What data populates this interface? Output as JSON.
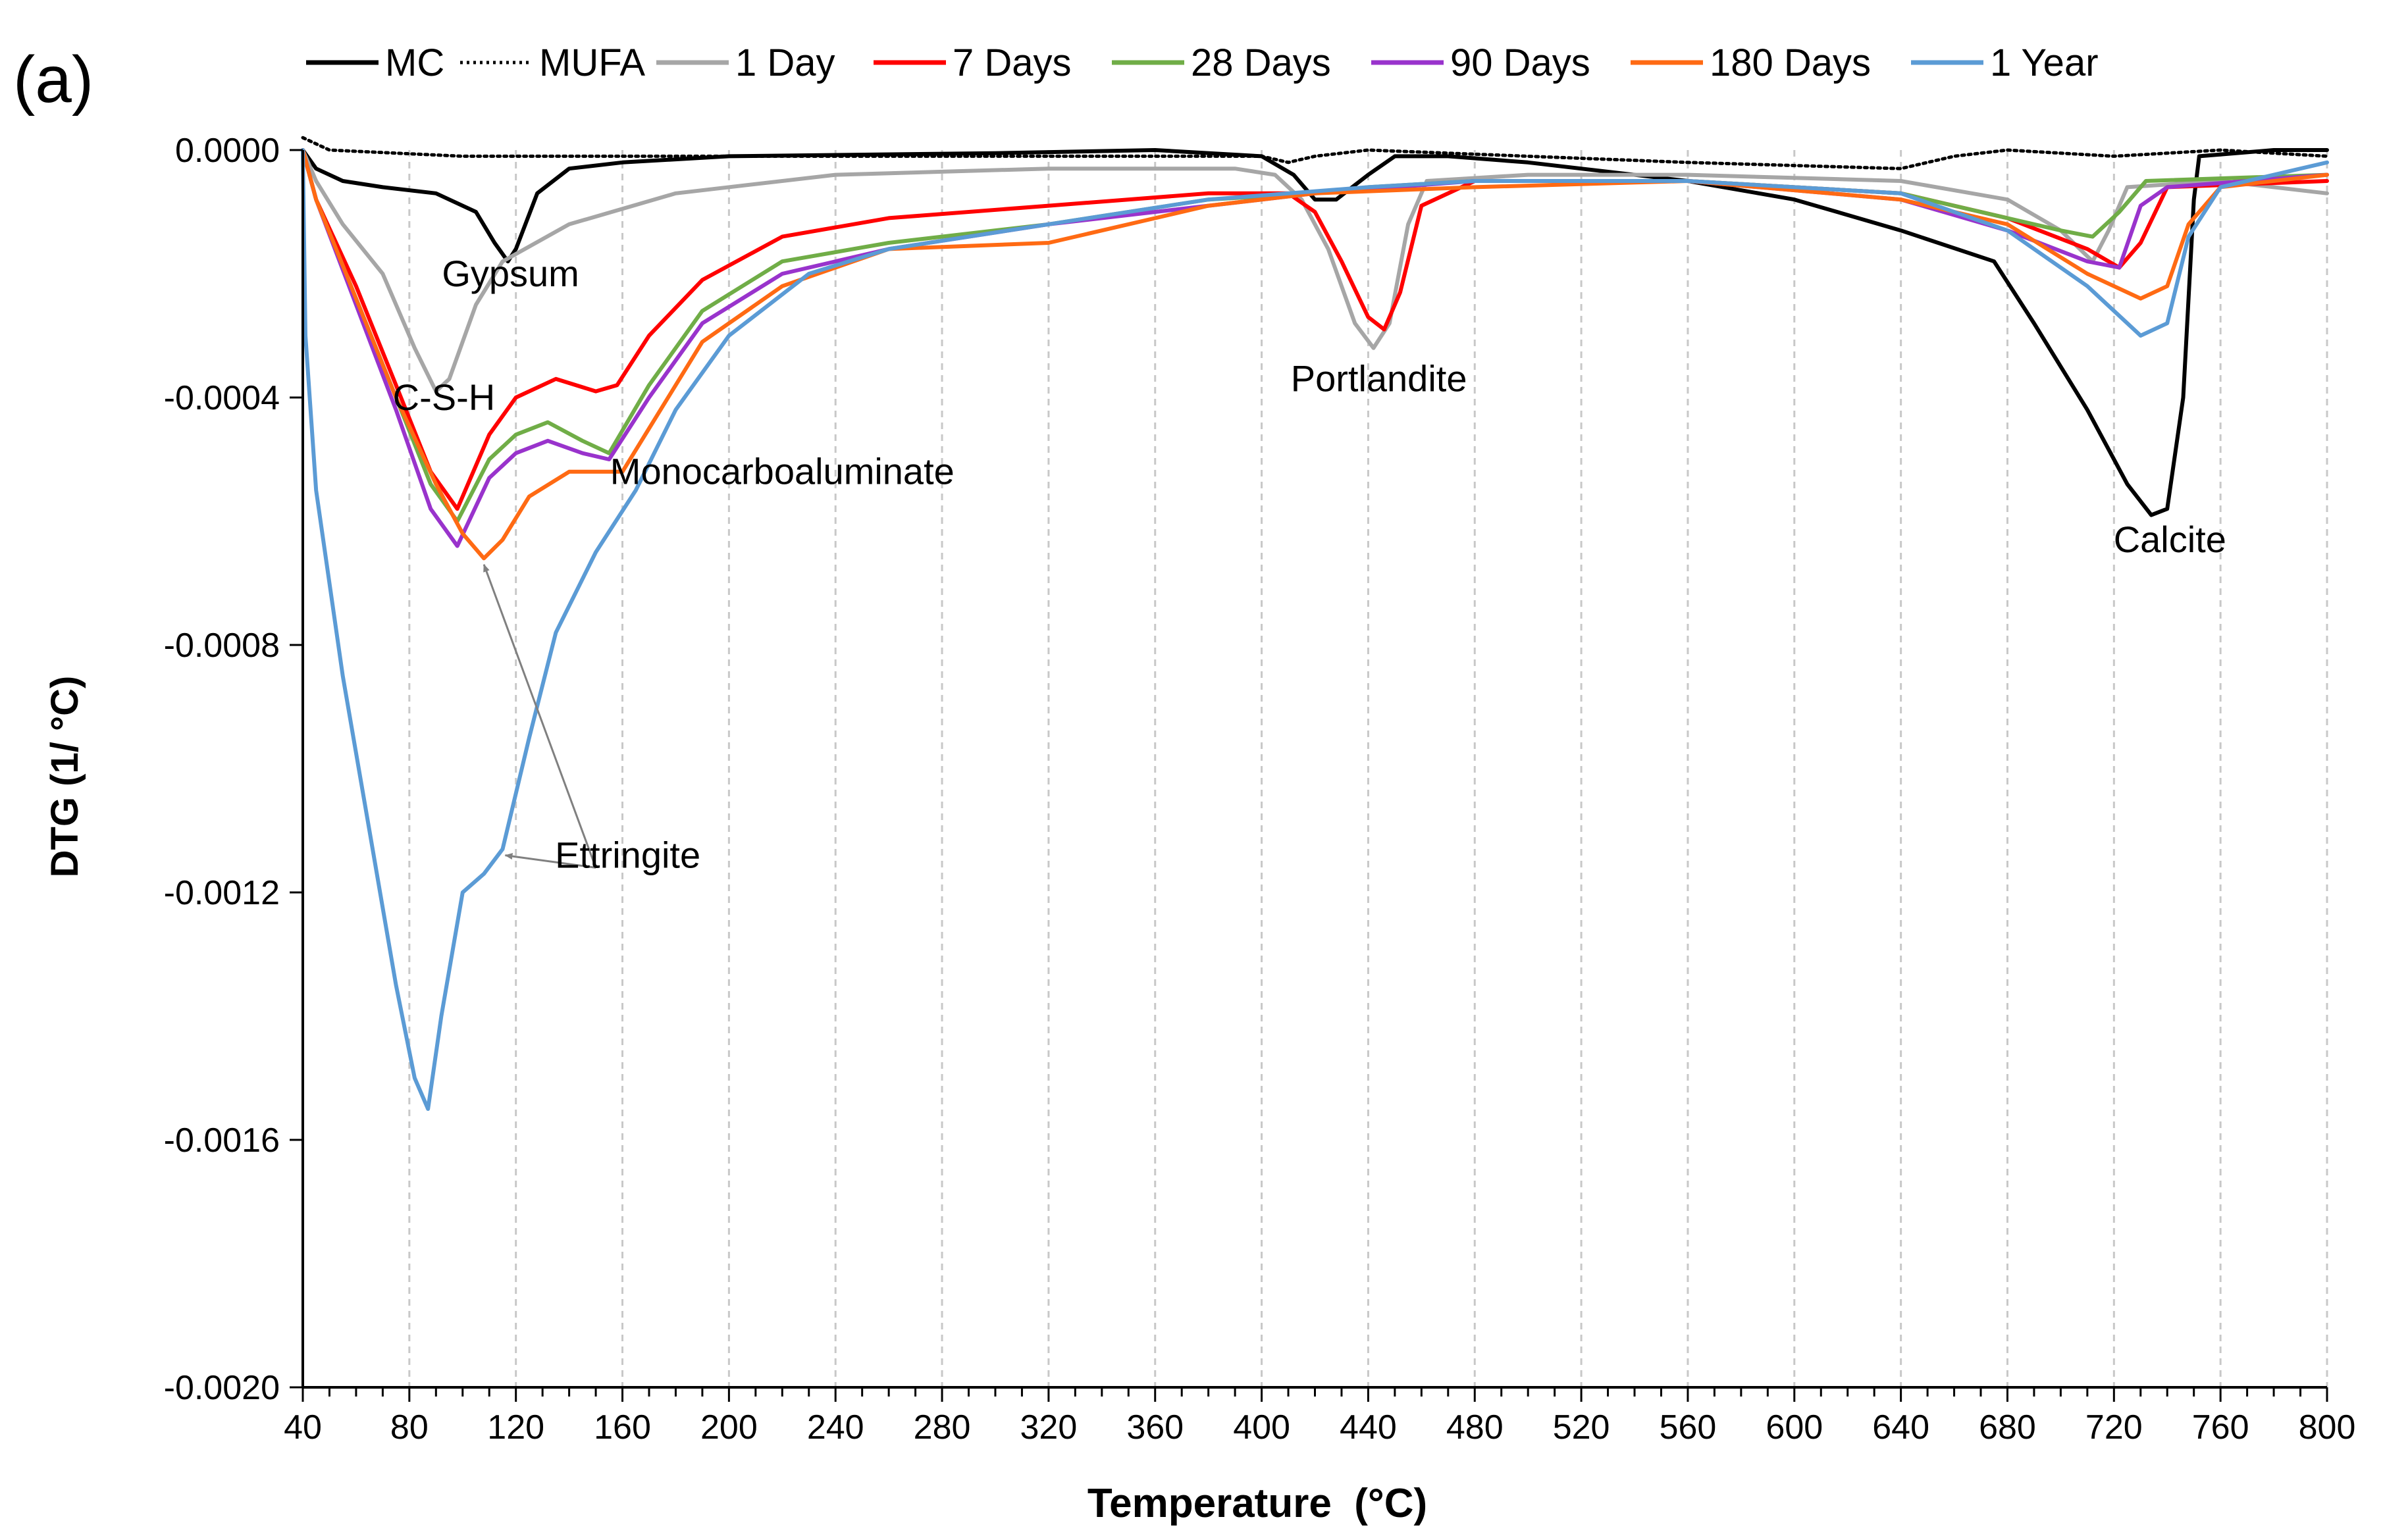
{
  "chart_data": {
    "type": "line",
    "panel_label": "(a)",
    "xlabel": "Temperature  (°C)",
    "ylabel": "DTG (1/ °C)",
    "xlim": [
      40,
      800
    ],
    "ylim": [
      -0.002,
      0.0
    ],
    "x_ticks": [
      40,
      80,
      120,
      160,
      200,
      240,
      280,
      320,
      360,
      400,
      440,
      480,
      520,
      560,
      600,
      640,
      680,
      720,
      760,
      800
    ],
    "x_tick_labels": [
      "40",
      "80",
      "120",
      "160",
      "200",
      "240",
      "280",
      "320",
      "360",
      "400",
      "440",
      "480",
      "520",
      "560",
      "600",
      "640",
      "680",
      "720",
      "760",
      "800"
    ],
    "y_ticks": [
      0.0,
      -0.0004,
      -0.0008,
      -0.0012,
      -0.0016,
      -0.002
    ],
    "y_tick_labels": [
      "0.0000",
      "-0.0004",
      "-0.0008",
      "-0.0012",
      "-0.0016",
      "-0.0020"
    ],
    "grid": "vertical dashed",
    "legend_position": "top",
    "series": [
      {
        "name": "MC",
        "color": "#000000",
        "dash": "solid",
        "points": [
          [
            40,
            0
          ],
          [
            45,
            -3e-05
          ],
          [
            55,
            -5e-05
          ],
          [
            70,
            -6e-05
          ],
          [
            90,
            -7e-05
          ],
          [
            105,
            -0.0001
          ],
          [
            112,
            -0.00015
          ],
          [
            117,
            -0.00018
          ],
          [
            120,
            -0.00016
          ],
          [
            128,
            -7e-05
          ],
          [
            140,
            -3e-05
          ],
          [
            160,
            -2e-05
          ],
          [
            200,
            -1e-05
          ],
          [
            300,
            -5e-06
          ],
          [
            360,
            0
          ],
          [
            400,
            -1e-05
          ],
          [
            412,
            -4e-05
          ],
          [
            420,
            -8e-05
          ],
          [
            428,
            -8e-05
          ],
          [
            440,
            -4e-05
          ],
          [
            450,
            -1e-05
          ],
          [
            470,
            -1e-05
          ],
          [
            500,
            -2e-05
          ],
          [
            560,
            -5e-05
          ],
          [
            600,
            -8e-05
          ],
          [
            640,
            -0.00013
          ],
          [
            675,
            -0.00018
          ],
          [
            690,
            -0.00028
          ],
          [
            710,
            -0.00042
          ],
          [
            725,
            -0.00054
          ],
          [
            734,
            -0.00059
          ],
          [
            740,
            -0.00058
          ],
          [
            746,
            -0.0004
          ],
          [
            750,
            -8e-05
          ],
          [
            752,
            -1e-05
          ],
          [
            780,
            0
          ],
          [
            800,
            0
          ]
        ]
      },
      {
        "name": "MUFA",
        "color": "#000000",
        "dash": "dotted",
        "points": [
          [
            40,
            2e-05
          ],
          [
            50,
            0
          ],
          [
            100,
            -1e-05
          ],
          [
            200,
            -1e-05
          ],
          [
            300,
            -1e-05
          ],
          [
            400,
            -1e-05
          ],
          [
            410,
            -2e-05
          ],
          [
            420,
            -1e-05
          ],
          [
            440,
            0
          ],
          [
            500,
            -1e-05
          ],
          [
            560,
            -2e-05
          ],
          [
            640,
            -3e-05
          ],
          [
            660,
            -1e-05
          ],
          [
            680,
            0
          ],
          [
            720,
            -1e-05
          ],
          [
            760,
            0
          ],
          [
            800,
            -1e-05
          ]
        ]
      },
      {
        "name": "1 Day",
        "color": "#a6a6a6",
        "dash": "solid",
        "points": [
          [
            40,
            0
          ],
          [
            45,
            -5e-05
          ],
          [
            55,
            -0.00012
          ],
          [
            70,
            -0.0002
          ],
          [
            82,
            -0.00032
          ],
          [
            90,
            -0.00039
          ],
          [
            95,
            -0.00037
          ],
          [
            105,
            -0.00025
          ],
          [
            115,
            -0.00018
          ],
          [
            140,
            -0.00012
          ],
          [
            180,
            -7e-05
          ],
          [
            240,
            -4e-05
          ],
          [
            320,
            -3e-05
          ],
          [
            390,
            -3e-05
          ],
          [
            405,
            -4e-05
          ],
          [
            415,
            -8e-05
          ],
          [
            425,
            -0.00016
          ],
          [
            435,
            -0.00028
          ],
          [
            442,
            -0.00032
          ],
          [
            448,
            -0.00028
          ],
          [
            455,
            -0.00012
          ],
          [
            462,
            -5e-05
          ],
          [
            500,
            -4e-05
          ],
          [
            560,
            -4e-05
          ],
          [
            640,
            -5e-05
          ],
          [
            680,
            -8e-05
          ],
          [
            700,
            -0.00013
          ],
          [
            712,
            -0.00018
          ],
          [
            718,
            -0.00013
          ],
          [
            725,
            -6e-05
          ],
          [
            760,
            -5e-05
          ],
          [
            800,
            -7e-05
          ]
        ]
      },
      {
        "name": "7 Days",
        "color": "#ff0000",
        "dash": "solid",
        "points": [
          [
            40,
            0
          ],
          [
            45,
            -8e-05
          ],
          [
            60,
            -0.00022
          ],
          [
            75,
            -0.00038
          ],
          [
            88,
            -0.00052
          ],
          [
            98,
            -0.00058
          ],
          [
            110,
            -0.00046
          ],
          [
            120,
            -0.0004
          ],
          [
            135,
            -0.00037
          ],
          [
            150,
            -0.00039
          ],
          [
            158,
            -0.00038
          ],
          [
            170,
            -0.0003
          ],
          [
            190,
            -0.00021
          ],
          [
            220,
            -0.00014
          ],
          [
            260,
            -0.00011
          ],
          [
            320,
            -9e-05
          ],
          [
            380,
            -7e-05
          ],
          [
            410,
            -7e-05
          ],
          [
            420,
            -0.0001
          ],
          [
            430,
            -0.00018
          ],
          [
            440,
            -0.00027
          ],
          [
            446,
            -0.00029
          ],
          [
            452,
            -0.00023
          ],
          [
            460,
            -9e-05
          ],
          [
            480,
            -5e-05
          ],
          [
            560,
            -5e-05
          ],
          [
            640,
            -7e-05
          ],
          [
            680,
            -0.00011
          ],
          [
            710,
            -0.00016
          ],
          [
            722,
            -0.00019
          ],
          [
            730,
            -0.00015
          ],
          [
            740,
            -6e-05
          ],
          [
            800,
            -5e-05
          ]
        ]
      },
      {
        "name": "28 Days",
        "color": "#70ad47",
        "dash": "solid",
        "points": [
          [
            40,
            0
          ],
          [
            45,
            -8e-05
          ],
          [
            60,
            -0.00024
          ],
          [
            75,
            -0.0004
          ],
          [
            88,
            -0.00054
          ],
          [
            98,
            -0.0006
          ],
          [
            110,
            -0.0005
          ],
          [
            120,
            -0.00046
          ],
          [
            132,
            -0.00044
          ],
          [
            145,
            -0.00047
          ],
          [
            155,
            -0.00049
          ],
          [
            170,
            -0.00038
          ],
          [
            190,
            -0.00026
          ],
          [
            220,
            -0.00018
          ],
          [
            260,
            -0.00015
          ],
          [
            320,
            -0.00012
          ],
          [
            380,
            -8e-05
          ],
          [
            420,
            -7e-05
          ],
          [
            440,
            -6e-05
          ],
          [
            480,
            -5e-05
          ],
          [
            560,
            -5e-05
          ],
          [
            640,
            -7e-05
          ],
          [
            680,
            -0.00011
          ],
          [
            700,
            -0.00013
          ],
          [
            712,
            -0.00014
          ],
          [
            722,
            -0.0001
          ],
          [
            732,
            -5e-05
          ],
          [
            800,
            -4e-05
          ]
        ]
      },
      {
        "name": "90 Days",
        "color": "#9933cc",
        "dash": "solid",
        "points": [
          [
            40,
            0
          ],
          [
            45,
            -8e-05
          ],
          [
            60,
            -0.00025
          ],
          [
            75,
            -0.00042
          ],
          [
            88,
            -0.00058
          ],
          [
            98,
            -0.00064
          ],
          [
            110,
            -0.00053
          ],
          [
            120,
            -0.00049
          ],
          [
            132,
            -0.00047
          ],
          [
            145,
            -0.00049
          ],
          [
            155,
            -0.0005
          ],
          [
            170,
            -0.0004
          ],
          [
            190,
            -0.00028
          ],
          [
            220,
            -0.0002
          ],
          [
            260,
            -0.00016
          ],
          [
            320,
            -0.00012
          ],
          [
            380,
            -9e-05
          ],
          [
            420,
            -7e-05
          ],
          [
            480,
            -5e-05
          ],
          [
            560,
            -5e-05
          ],
          [
            640,
            -8e-05
          ],
          [
            680,
            -0.00013
          ],
          [
            710,
            -0.00018
          ],
          [
            722,
            -0.00019
          ],
          [
            730,
            -9e-05
          ],
          [
            740,
            -6e-05
          ],
          [
            800,
            -4e-05
          ]
        ]
      },
      {
        "name": "180 Days",
        "color": "#ff6a13",
        "dash": "solid",
        "points": [
          [
            40,
            0
          ],
          [
            45,
            -8e-05
          ],
          [
            60,
            -0.00024
          ],
          [
            75,
            -0.0004
          ],
          [
            90,
            -0.00054
          ],
          [
            100,
            -0.00062
          ],
          [
            108,
            -0.00066
          ],
          [
            115,
            -0.00063
          ],
          [
            125,
            -0.00056
          ],
          [
            140,
            -0.00052
          ],
          [
            160,
            -0.00052
          ],
          [
            170,
            -0.00045
          ],
          [
            190,
            -0.00031
          ],
          [
            220,
            -0.00022
          ],
          [
            260,
            -0.00016
          ],
          [
            320,
            -0.00015
          ],
          [
            380,
            -9e-05
          ],
          [
            420,
            -7e-05
          ],
          [
            480,
            -6e-05
          ],
          [
            560,
            -5e-05
          ],
          [
            640,
            -8e-05
          ],
          [
            680,
            -0.00012
          ],
          [
            710,
            -0.0002
          ],
          [
            730,
            -0.00024
          ],
          [
            740,
            -0.00022
          ],
          [
            748,
            -0.00012
          ],
          [
            760,
            -6e-05
          ],
          [
            800,
            -4e-05
          ]
        ]
      },
      {
        "name": "1 Year",
        "color": "#5b9bd5",
        "dash": "solid",
        "points": [
          [
            40,
            0
          ],
          [
            41,
            -0.0003
          ],
          [
            45,
            -0.00055
          ],
          [
            55,
            -0.00085
          ],
          [
            65,
            -0.0011
          ],
          [
            75,
            -0.00135
          ],
          [
            82,
            -0.0015
          ],
          [
            87,
            -0.00155
          ],
          [
            92,
            -0.0014
          ],
          [
            100,
            -0.0012
          ],
          [
            108,
            -0.00117
          ],
          [
            115,
            -0.00113
          ],
          [
            125,
            -0.00095
          ],
          [
            135,
            -0.00078
          ],
          [
            150,
            -0.00065
          ],
          [
            165,
            -0.00055
          ],
          [
            180,
            -0.00042
          ],
          [
            200,
            -0.0003
          ],
          [
            230,
            -0.0002
          ],
          [
            260,
            -0.00016
          ],
          [
            320,
            -0.00012
          ],
          [
            380,
            -8e-05
          ],
          [
            440,
            -6e-05
          ],
          [
            480,
            -5e-05
          ],
          [
            560,
            -5e-05
          ],
          [
            640,
            -7e-05
          ],
          [
            680,
            -0.00013
          ],
          [
            710,
            -0.00022
          ],
          [
            730,
            -0.0003
          ],
          [
            740,
            -0.00028
          ],
          [
            748,
            -0.00014
          ],
          [
            760,
            -6e-05
          ],
          [
            800,
            -2e-05
          ]
        ]
      }
    ],
    "annotations": [
      {
        "text": "Gypsum",
        "x": 118,
        "y": -0.00022
      },
      {
        "text": "C-S-H",
        "x": 93,
        "y": -0.00042
      },
      {
        "text": "Monocarboaluminate",
        "x": 220,
        "y": -0.00054
      },
      {
        "text": "Portlandite",
        "x": 444,
        "y": -0.00039
      },
      {
        "text": "Calcite",
        "x": 741,
        "y": -0.00065
      },
      {
        "text": "Ettringite",
        "x": 162,
        "y": -0.00116
      }
    ],
    "arrows": [
      {
        "from_x": 150,
        "from_y": -0.00116,
        "to_x": 108,
        "to_y": -0.00067
      },
      {
        "from_x": 150,
        "from_y": -0.00116,
        "to_x": 116,
        "to_y": -0.00114
      }
    ]
  }
}
